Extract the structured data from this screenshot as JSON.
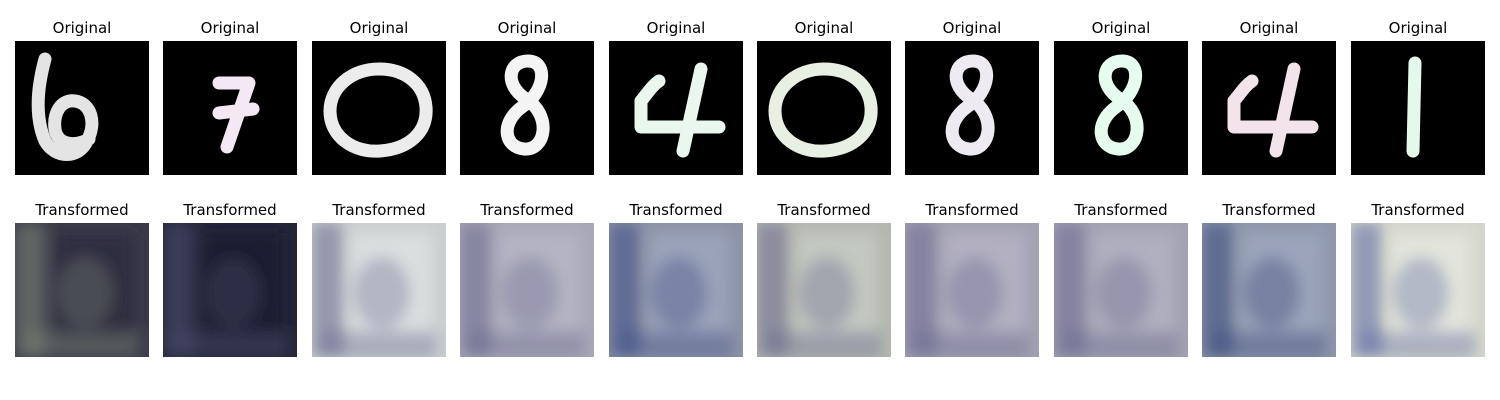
{
  "labels": {
    "original": "Original",
    "transformed": "Transformed"
  },
  "panels": [
    {
      "digit": "6",
      "fg": "#e4e4e4",
      "tone": "#2c2a3e",
      "tone2": "#7e8876",
      "tbg": "#3a3a4a"
    },
    {
      "digit": "7",
      "fg": "#f4e8f4",
      "tone": "#1c1c30",
      "tone2": "#4a4e6e",
      "tbg": "#25253a"
    },
    {
      "digit": "0",
      "fg": "#ececec",
      "tone": "#dfe2e3",
      "tone2": "#6a6a92",
      "tbg": "#c9cfcf"
    },
    {
      "digit": "8",
      "fg": "#f4f4f4",
      "tone": "#b7b6c6",
      "tone2": "#6a6a8e",
      "tbg": "#a9a8b8"
    },
    {
      "digit": "4",
      "fg": "#e9f7ee",
      "tone": "#9fa6bd",
      "tone2": "#3b4d86",
      "tbg": "#8d93a7"
    },
    {
      "digit": "0",
      "fg": "#e8f0e4",
      "tone": "#c7ccc4",
      "tone2": "#6a6890",
      "tbg": "#b4b8b0"
    },
    {
      "digit": "8",
      "fg": "#eeeaf2",
      "tone": "#b5b4c4",
      "tone2": "#6a6890",
      "tbg": "#a3a2b2"
    },
    {
      "digit": "8",
      "fg": "#e6fcee",
      "tone": "#b4b3c3",
      "tone2": "#6a6890",
      "tbg": "#a3a2b2"
    },
    {
      "digit": "4",
      "fg": "#f2e4ea",
      "tone": "#9fa8bd",
      "tone2": "#36497c",
      "tbg": "#8e97ab"
    },
    {
      "digit": "1",
      "fg": "#e4f8ec",
      "tone": "#e6e9df",
      "tone2": "#5a68a4",
      "tbg": "#d4d6cc"
    }
  ]
}
